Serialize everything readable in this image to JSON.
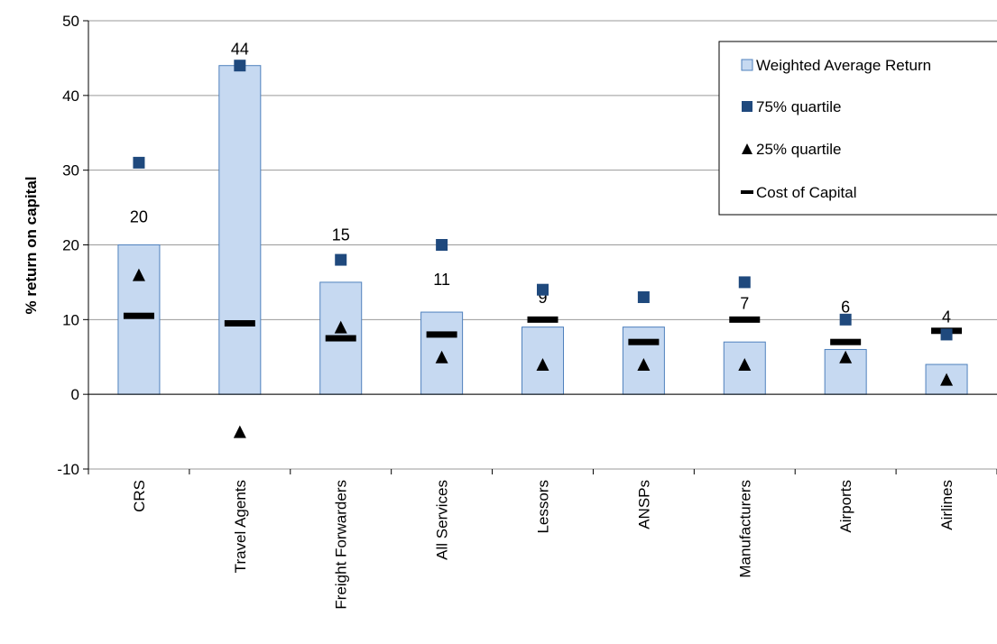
{
  "chart_data": {
    "type": "bar",
    "ylabel": "% return on capital",
    "ylim": [
      -10,
      50
    ],
    "yticks": [
      -10,
      0,
      10,
      20,
      30,
      40,
      50
    ],
    "grid": true,
    "legend_position": "top-right",
    "categories": [
      "CRS",
      "Travel Agents",
      "Freight Forwarders",
      "All Services",
      "Lessors",
      "ANSPs",
      "Manufacturers",
      "Airports",
      "Airlines"
    ],
    "series": [
      {
        "name": "Weighted Average Return",
        "mark": "bar",
        "color": "#c6d9f1",
        "values": [
          20,
          44,
          15,
          11,
          9,
          9,
          7,
          6,
          4
        ]
      },
      {
        "name": "75% quartile",
        "mark": "square",
        "color": "#1f497d",
        "values": [
          31,
          44,
          18,
          20,
          14,
          13,
          15,
          10,
          8
        ]
      },
      {
        "name": "25% quartile",
        "mark": "triangle",
        "color": "#000000",
        "values": [
          16,
          -5,
          9,
          5,
          4,
          4,
          4,
          5,
          2
        ]
      },
      {
        "name": "Cost of Capital",
        "mark": "dash",
        "color": "#000000",
        "values": [
          10.5,
          9.5,
          7.5,
          8,
          10,
          7,
          10,
          7,
          8.5
        ]
      }
    ],
    "data_labels": [
      "20",
      "44",
      "15",
      "11",
      "9",
      "9",
      "7",
      "6",
      "4"
    ]
  }
}
